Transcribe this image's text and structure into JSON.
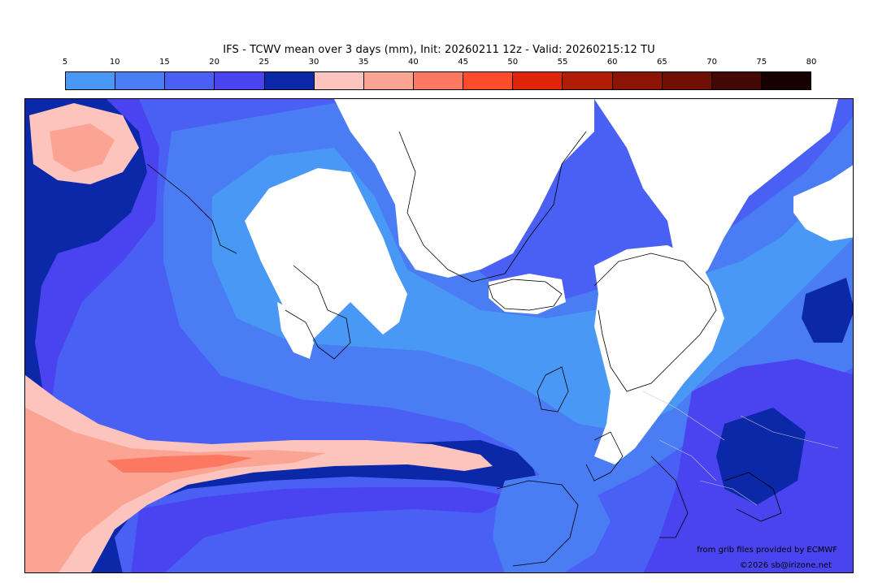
{
  "title": "IFS - TCWV mean over 3 days (mm), Init: 20260211 12z - Valid: 20260215:12 TU",
  "colorbar": {
    "tick_labels": [
      "5",
      "10",
      "15",
      "20",
      "25",
      "30",
      "35",
      "40",
      "45",
      "50",
      "55",
      "60",
      "65",
      "70",
      "75",
      "80"
    ],
    "colors": [
      "#4a98f6",
      "#4a7cf4",
      "#4a60f4",
      "#4a44f0",
      "#0a28a8",
      "#fcc4bc",
      "#fca494",
      "#fc7860",
      "#fc4c2c",
      "#e02408",
      "#b01c04",
      "#8c1404",
      "#701004",
      "#440804",
      "#180000"
    ]
  },
  "map": {
    "palette": {
      "land_dry": "#ffffff",
      "very_dry": "#4a98f6",
      "dry": "#4a7cf4",
      "moderate": "#4a60f4",
      "moist": "#4a44f0",
      "humid": "#0a28a8",
      "atmospheric_river_light": "#fcc4bc",
      "atmospheric_river": "#fca494",
      "atmospheric_river_core": "#fc7860",
      "coastline": "#000000",
      "borders": "#c8c8c8"
    }
  },
  "credits": {
    "data_source": "from grib files provided by ECMWF",
    "copyright": "©2026 sb@irizone.net"
  }
}
